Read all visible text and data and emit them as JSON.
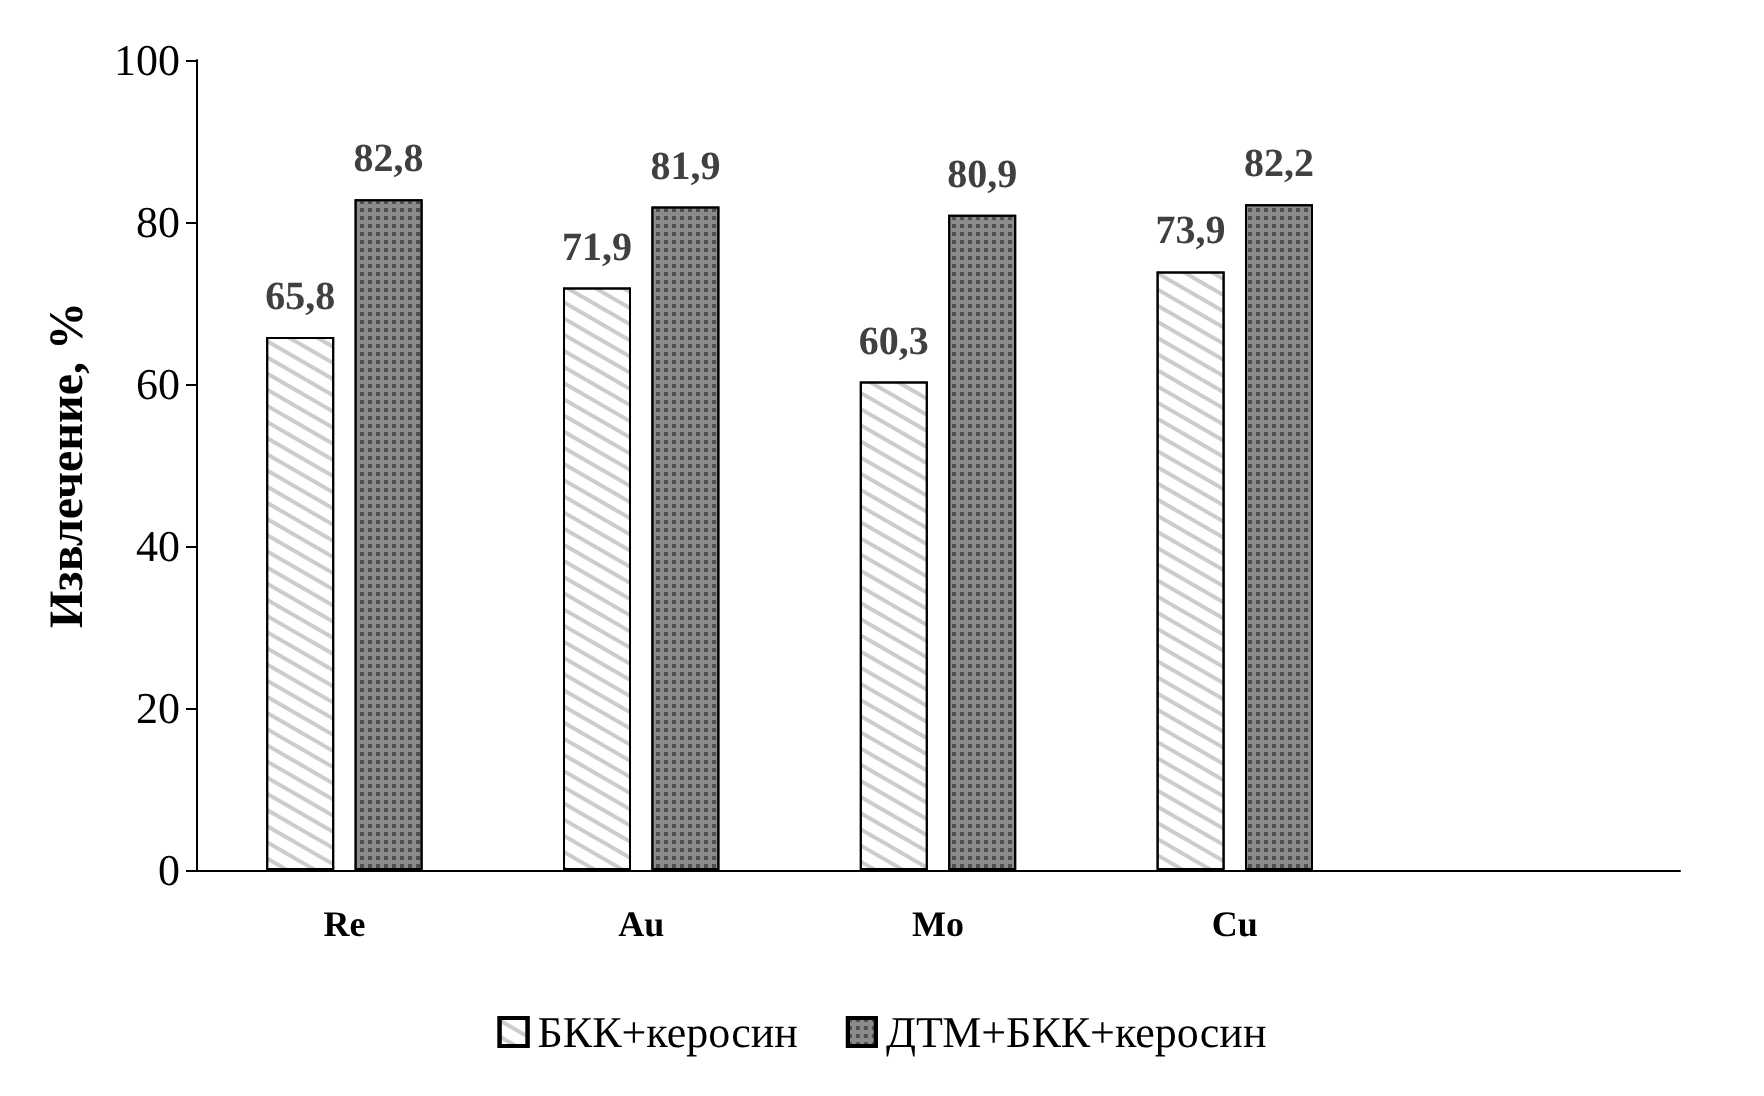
{
  "chart_data": {
    "type": "bar",
    "ylabel": "Извлечение, %",
    "categories": [
      "Re",
      "Au",
      "Mo",
      "Cu",
      null
    ],
    "series": [
      {
        "name": "БКК+керосин",
        "color": "#ffffff",
        "values": [
          65.8,
          71.9,
          60.3,
          73.9,
          null
        ],
        "value_labels": [
          "65,8",
          "71,9",
          "60,3",
          "73,9",
          null
        ]
      },
      {
        "name": "ДТМ+БКК+керосин",
        "color": "#8c8c8c",
        "values": [
          82.8,
          81.9,
          80.9,
          82.2,
          null
        ],
        "value_labels": [
          "82,8",
          "81,9",
          "80,9",
          "82,2",
          null
        ]
      }
    ],
    "ylim": [
      0,
      100
    ],
    "yticks": [
      0,
      20,
      40,
      60,
      80,
      100
    ],
    "legend": "bottom",
    "grid": false
  }
}
